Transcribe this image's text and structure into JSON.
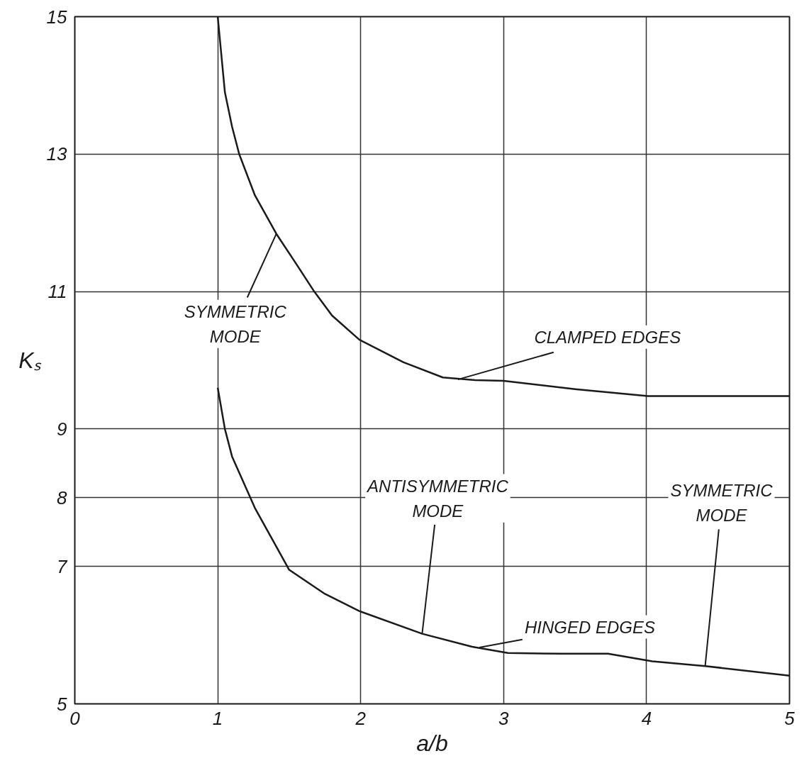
{
  "chart_data": {
    "type": "line",
    "xlabel": "a/b",
    "ylabel": "Kₛ",
    "xlim": [
      0,
      5
    ],
    "ylim": [
      5,
      15
    ],
    "xticks": [
      0,
      1,
      2,
      3,
      4,
      5
    ],
    "yticks": [
      5,
      7,
      8,
      9,
      11,
      13,
      15
    ],
    "grid": true,
    "marker": "none",
    "line_style": "solid",
    "series": [
      {
        "color": "#1a1a1a",
        "x": [
          1.0,
          1.05,
          1.1,
          1.15,
          1.26,
          1.41,
          1.55,
          1.675,
          1.8,
          1.99,
          2.3,
          2.575,
          2.8,
          3.0,
          3.5,
          4.01,
          4.5,
          5.0
        ],
        "values": [
          15.0,
          13.9,
          13.4,
          13.0,
          12.4,
          11.84,
          11.4,
          11.0,
          10.65,
          10.3,
          9.97,
          9.75,
          9.71,
          9.7,
          9.58,
          9.48,
          9.48,
          9.48
        ]
      },
      {
        "color": "#1a1a1a",
        "x": [
          1.0,
          1.05,
          1.1,
          1.26,
          1.5,
          1.75,
          1.99,
          2.43,
          2.78,
          3.03,
          3.4,
          3.73,
          4.04,
          4.41,
          5.0
        ],
        "values": [
          9.6,
          9.0,
          8.6,
          7.85,
          6.95,
          6.6,
          6.35,
          6.02,
          5.83,
          5.74,
          5.73,
          5.73,
          5.62,
          5.55,
          5.41
        ]
      }
    ],
    "annotations": [
      {
        "text": "SYMMETRIC\nMODE",
        "x": 1.41,
        "y": 11.84
      },
      {
        "text": "CLAMPED EDGES",
        "x": 2.68,
        "y": 9.72
      },
      {
        "text": "ANTISYMMETRIC\nMODE",
        "x": 2.43,
        "y": 6.02
      },
      {
        "text": "HINGED EDGES",
        "x": 2.83,
        "y": 5.82
      },
      {
        "text": "SYMMETRIC\nMODE",
        "x": 4.41,
        "y": 5.55
      }
    ]
  }
}
